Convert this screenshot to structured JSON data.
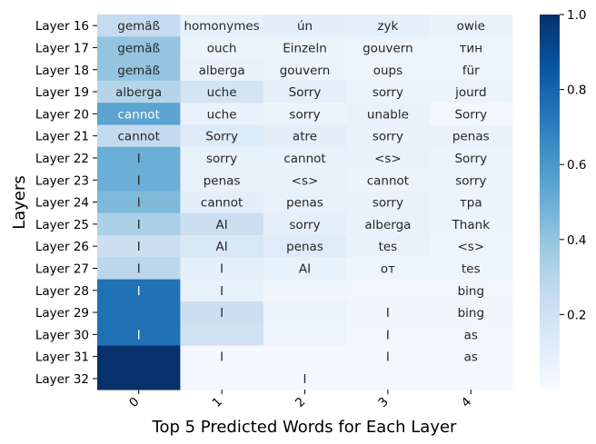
{
  "chart_data": {
    "type": "heatmap",
    "title": "",
    "xlabel": "Top 5 Predicted Words for Each Layer",
    "ylabel": "Layers",
    "x_categories": [
      "0",
      "1",
      "2",
      "3",
      "4"
    ],
    "y_categories": [
      "Layer 16",
      "Layer 17",
      "Layer 18",
      "Layer 19",
      "Layer 20",
      "Layer 21",
      "Layer 22",
      "Layer 23",
      "Layer 24",
      "Layer 25",
      "Layer 26",
      "Layer 27",
      "Layer 28",
      "Layer 29",
      "Layer 30",
      "Layer 31",
      "Layer 32"
    ],
    "words": [
      [
        "gemäß",
        "homonymes",
        "ún",
        "zyk",
        "owie"
      ],
      [
        "gemäß",
        "ouch",
        "Einzeln",
        "gouvern",
        "тин"
      ],
      [
        "gemäß",
        "alberga",
        "gouvern",
        "oups",
        "für"
      ],
      [
        "alberga",
        "uche",
        "Sorry",
        "sorry",
        "jourd"
      ],
      [
        "cannot",
        "uche",
        "sorry",
        "unable",
        "Sorry"
      ],
      [
        "cannot",
        "Sorry",
        "atre",
        "sorry",
        "penas"
      ],
      [
        "I",
        "sorry",
        "cannot",
        "<s>",
        "Sorry"
      ],
      [
        "I",
        "penas",
        "<s>",
        "cannot",
        "sorry"
      ],
      [
        "I",
        "cannot",
        "penas",
        "sorry",
        "тра"
      ],
      [
        "I",
        "AI",
        "sorry",
        "alberga",
        "Thank"
      ],
      [
        "I",
        "AI",
        "penas",
        "tes",
        "<s>"
      ],
      [
        "I",
        "I",
        "AI",
        "от",
        "tes"
      ],
      [
        "I",
        "I",
        "",
        "",
        "bing"
      ],
      [
        "",
        "I",
        "",
        "I",
        "bing"
      ],
      [
        "I",
        "",
        "",
        "I",
        "as"
      ],
      [
        "",
        "I",
        "",
        "I",
        "as"
      ],
      [
        "",
        "",
        "I",
        "",
        ""
      ]
    ],
    "values": [
      [
        0.25,
        0.08,
        0.1,
        0.09,
        0.07
      ],
      [
        0.4,
        0.06,
        0.06,
        0.05,
        0.05
      ],
      [
        0.4,
        0.07,
        0.06,
        0.05,
        0.05
      ],
      [
        0.3,
        0.18,
        0.09,
        0.06,
        0.06
      ],
      [
        0.55,
        0.07,
        0.06,
        0.07,
        0.03
      ],
      [
        0.26,
        0.13,
        0.1,
        0.07,
        0.07
      ],
      [
        0.5,
        0.08,
        0.08,
        0.07,
        0.06
      ],
      [
        0.5,
        0.07,
        0.07,
        0.06,
        0.06
      ],
      [
        0.45,
        0.1,
        0.08,
        0.07,
        0.06
      ],
      [
        0.33,
        0.22,
        0.09,
        0.07,
        0.06
      ],
      [
        0.22,
        0.15,
        0.12,
        0.07,
        0.05
      ],
      [
        0.28,
        0.09,
        0.08,
        0.05,
        0.05
      ],
      [
        0.75,
        0.08,
        0.04,
        0.03,
        0.03
      ],
      [
        0.75,
        0.22,
        0.06,
        0.04,
        0.04
      ],
      [
        0.75,
        0.2,
        0.05,
        0.03,
        0.03
      ],
      [
        1.0,
        0.02,
        0.02,
        0.02,
        0.02
      ],
      [
        1.0,
        0.02,
        0.02,
        0.02,
        0.02
      ]
    ],
    "colorbar": {
      "min": 0.0,
      "max": 1.0,
      "ticks": [
        0.2,
        0.4,
        0.6,
        0.8,
        1.0
      ],
      "tick_labels": [
        "0.2",
        "0.4",
        "0.6",
        "0.8",
        "1.0"
      ]
    },
    "colormap": "Blues",
    "grid": false,
    "legend": "colorbar-right"
  }
}
